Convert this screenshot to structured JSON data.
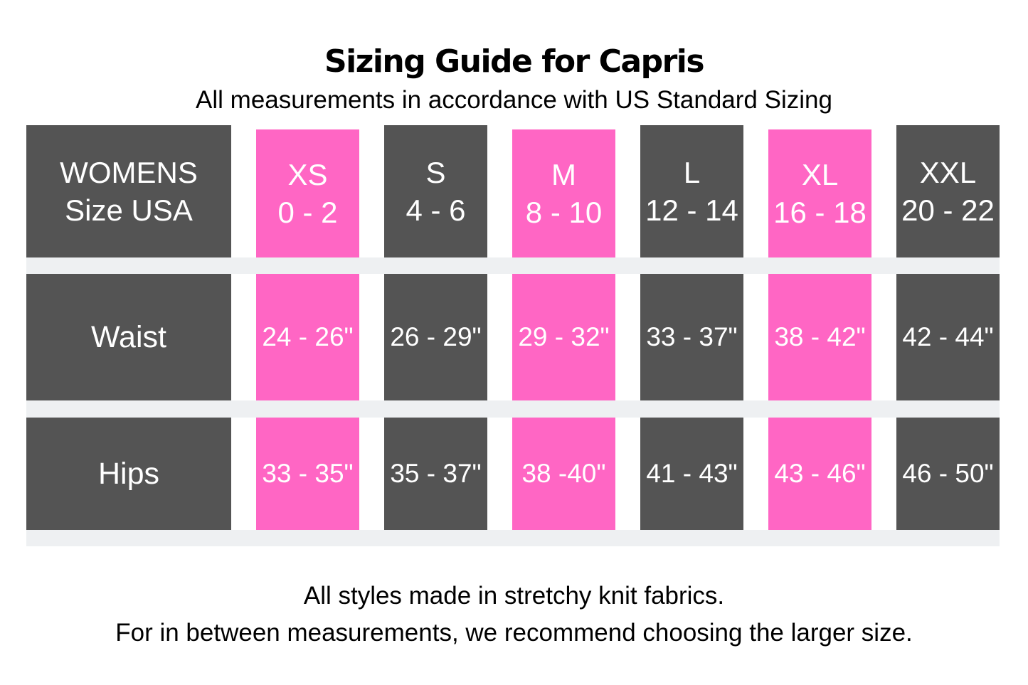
{
  "header": {
    "title": "Sizing Guide for Capris",
    "subtitle": "All measurements in accordance with US Standard Sizing"
  },
  "table": {
    "colors": {
      "dark_cell": "#545454",
      "pink_cell": "#ff66c4",
      "separator_band": "#eef0f2",
      "cell_text": "#ffffff"
    },
    "size_row": {
      "header_line1": "WOMENS",
      "header_line2": "Size USA",
      "sizes": [
        {
          "label": "XS",
          "range": "0 - 2",
          "highlight": true
        },
        {
          "label": "S",
          "range": "4 - 6",
          "highlight": false
        },
        {
          "label": "M",
          "range": "8 - 10",
          "highlight": true
        },
        {
          "label": "L",
          "range": "12 - 14",
          "highlight": false
        },
        {
          "label": "XL",
          "range": "16 - 18",
          "highlight": true
        },
        {
          "label": "XXL",
          "range": "20 - 22",
          "highlight": false
        }
      ]
    },
    "rows": [
      {
        "label": "Waist",
        "values": [
          "24 - 26\"",
          "26 - 29\"",
          "29 - 32\"",
          "33 - 37\"",
          "38 - 42\"",
          "42 - 44\""
        ]
      },
      {
        "label": "Hips",
        "values": [
          "33 - 35\"",
          "35 - 37\"",
          "38 -40\"",
          "41 - 43\"",
          "43 - 46\"",
          "46 - 50\""
        ]
      }
    ]
  },
  "footer": {
    "line1": "All styles made in stretchy knit fabrics.",
    "line2": "For in between measurements, we recommend choosing the larger size."
  }
}
